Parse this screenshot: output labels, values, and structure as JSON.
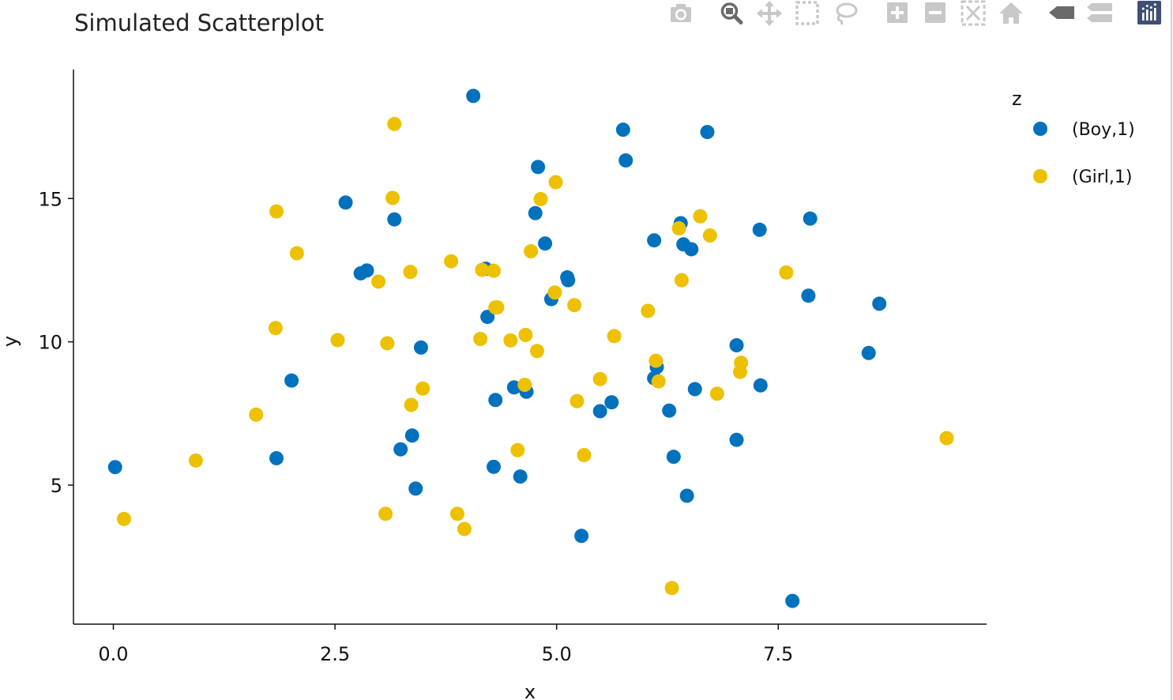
{
  "toolbar": {
    "buttons": [
      {
        "name": "download-plot-button",
        "icon": "camera-icon"
      },
      {
        "name": "zoom-button",
        "icon": "magnifier-icon",
        "active": true
      },
      {
        "name": "pan-button",
        "icon": "move-arrows-icon"
      },
      {
        "name": "box-select-button",
        "icon": "dashed-box-icon"
      },
      {
        "name": "lasso-select-button",
        "icon": "lasso-icon"
      },
      {
        "name": "zoom-in-button",
        "icon": "plus-square-icon"
      },
      {
        "name": "zoom-out-button",
        "icon": "minus-square-icon"
      },
      {
        "name": "autoscale-button",
        "icon": "autoscale-icon"
      },
      {
        "name": "reset-axes-button",
        "icon": "home-icon"
      },
      {
        "name": "hover-closest-button",
        "icon": "single-tag-icon"
      },
      {
        "name": "hover-compare-button",
        "icon": "double-tag-icon"
      },
      {
        "name": "plotly-logo-button",
        "icon": "plotly-logo-icon"
      }
    ],
    "icon_color": "#c8c8c8",
    "active_icon_color": "#6a6a6a",
    "logo_color": "#3f4f75"
  },
  "chart_data": {
    "type": "scatter",
    "title": "Simulated Scatterplot",
    "xlabel": "x",
    "ylabel": "y",
    "xlim": [
      -0.45,
      9.85
    ],
    "ylim": [
      0.15,
      19.5
    ],
    "xticks": [
      0.0,
      2.5,
      5.0,
      7.5
    ],
    "xtick_labels": [
      "0.0",
      "2.5",
      "5.0",
      "7.5"
    ],
    "yticks": [
      5,
      10,
      15
    ],
    "ytick_labels": [
      "5",
      "10",
      "15"
    ],
    "grid": false,
    "legend": {
      "title": "z",
      "placement": "right"
    },
    "series": [
      {
        "name": "(Boy,1)",
        "color": "#0072BD",
        "x": [
          0.02,
          1.84,
          2.01,
          2.62,
          2.79,
          2.86,
          3.17,
          3.24,
          3.37,
          3.41,
          3.47,
          4.06,
          4.2,
          4.22,
          4.29,
          4.31,
          4.52,
          4.59,
          4.66,
          4.76,
          4.79,
          4.87,
          4.94,
          5.12,
          5.13,
          5.28,
          5.49,
          5.62,
          5.75,
          5.78,
          6.1,
          6.1,
          6.13,
          6.27,
          6.32,
          6.4,
          6.43,
          6.47,
          6.52,
          6.56,
          6.7,
          7.03,
          7.03,
          7.29,
          7.3,
          7.66,
          7.84,
          7.86,
          8.52,
          8.64
        ],
        "y": [
          5.63,
          5.94,
          8.65,
          14.86,
          12.39,
          12.49,
          14.27,
          6.25,
          6.73,
          4.88,
          9.8,
          18.58,
          12.55,
          10.87,
          5.64,
          7.97,
          8.41,
          5.3,
          8.26,
          14.49,
          16.1,
          13.43,
          11.49,
          12.25,
          12.15,
          3.23,
          7.58,
          7.89,
          17.4,
          16.33,
          13.54,
          8.73,
          9.12,
          7.6,
          5.99,
          14.14,
          13.4,
          4.63,
          13.23,
          8.35,
          17.32,
          9.88,
          6.58,
          13.91,
          8.48,
          0.96,
          11.61,
          14.3,
          9.61,
          11.33
        ]
      },
      {
        "name": "(Girl,1)",
        "color": "#EDC000",
        "x": [
          0.12,
          0.93,
          1.61,
          1.83,
          1.84,
          2.07,
          2.53,
          2.99,
          3.07,
          3.09,
          3.15,
          3.17,
          3.35,
          3.36,
          3.49,
          3.81,
          3.88,
          3.96,
          4.14,
          4.16,
          4.29,
          4.31,
          4.33,
          4.48,
          4.56,
          4.64,
          4.65,
          4.71,
          4.78,
          4.82,
          4.98,
          4.99,
          5.2,
          5.23,
          5.31,
          5.49,
          5.65,
          6.03,
          6.12,
          6.15,
          6.3,
          6.38,
          6.41,
          6.62,
          6.73,
          6.81,
          7.07,
          7.08,
          7.59,
          9.4
        ],
        "y": [
          3.82,
          5.86,
          7.46,
          10.48,
          14.55,
          13.09,
          10.06,
          12.1,
          4.0,
          9.95,
          15.02,
          17.6,
          12.44,
          7.8,
          8.37,
          12.81,
          4.0,
          3.47,
          10.1,
          12.51,
          12.48,
          11.2,
          11.2,
          10.05,
          6.22,
          8.5,
          10.24,
          13.16,
          9.68,
          14.98,
          11.72,
          15.57,
          11.28,
          7.93,
          6.05,
          8.7,
          10.2,
          11.08,
          9.34,
          8.62,
          1.41,
          13.96,
          12.15,
          14.38,
          13.71,
          8.19,
          8.95,
          9.27,
          12.42,
          6.64
        ]
      }
    ]
  }
}
